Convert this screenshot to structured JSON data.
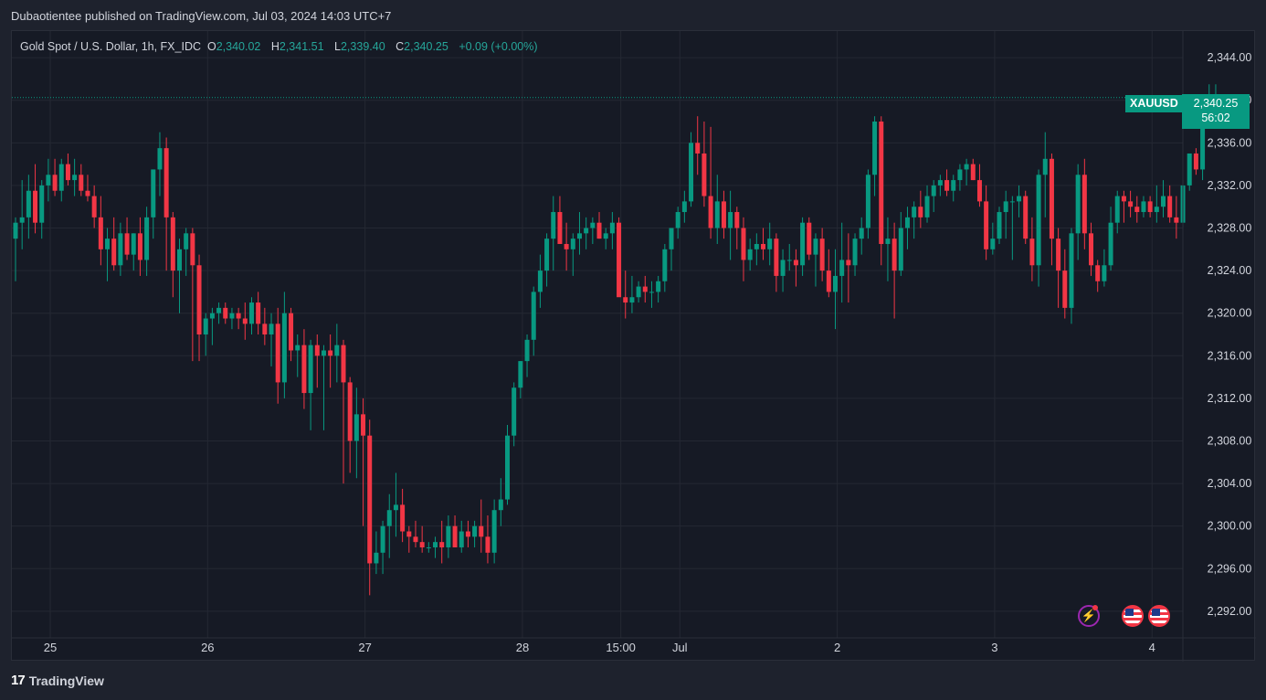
{
  "publisher": "Dubaotientee published on TradingView.com, Jul 03, 2024 14:03 UTC+7",
  "legend": {
    "title": "Gold Spot / U.S. Dollar, 1h, FX_IDC",
    "o_label": "O",
    "o": "2,340.02",
    "h_label": "H",
    "h": "2,341.51",
    "l_label": "L",
    "l": "2,339.40",
    "c_label": "C",
    "c": "2,340.25",
    "change": "+0.09 (+0.00%)"
  },
  "price_tag": {
    "symbol": "XAUUSD",
    "price": "2,340.25",
    "countdown": "56:02"
  },
  "brand": "TradingView",
  "colors": {
    "up": "#089981",
    "down": "#f23645",
    "background": "#161a25",
    "grid": "#242833"
  },
  "icons": [
    "flash-icon",
    "us-flag-icon",
    "us-flag-icon"
  ],
  "chart_data": {
    "type": "candlestick",
    "title": "Gold Spot / U.S. Dollar, 1h, FX_IDC",
    "ylim": [
      2289.5,
      2346.5
    ],
    "y_ticks": [
      2344,
      2340,
      2336,
      2332,
      2328,
      2324,
      2320,
      2316,
      2312,
      2308,
      2304,
      2300,
      2296,
      2292
    ],
    "y_tick_labels": [
      "2,344.00",
      "2,340.00",
      "2,336.00",
      "2,332.00",
      "2,328.00",
      "2,324.00",
      "2,320.00",
      "2,316.00",
      "2,312.00",
      "2,308.00",
      "2,304.00",
      "2,300.00",
      "2,296.00",
      "2,292.00"
    ],
    "x_ticks": [
      {
        "label": "25",
        "bar": 0
      },
      {
        "label": "26",
        "bar": 24
      },
      {
        "label": "27",
        "bar": 48
      },
      {
        "label": "28",
        "bar": 72
      },
      {
        "label": "15:00",
        "bar": 87
      },
      {
        "label": "Jul",
        "bar": 96
      },
      {
        "label": "2",
        "bar": 120
      },
      {
        "label": "3",
        "bar": 144
      },
      {
        "label": "4",
        "bar": 168
      }
    ],
    "last_price": 2340.25,
    "candles": [
      [
        2327.0,
        2329.0,
        2323.0,
        2328.5
      ],
      [
        2328.5,
        2332.5,
        2326.0,
        2329.0
      ],
      [
        2329.0,
        2333.0,
        2327.0,
        2331.5
      ],
      [
        2331.5,
        2334.0,
        2327.5,
        2328.5
      ],
      [
        2328.5,
        2332.5,
        2327.0,
        2332.0
      ],
      [
        2332.0,
        2334.5,
        2330.5,
        2333.0
      ],
      [
        2333.0,
        2334.5,
        2331.0,
        2331.5
      ],
      [
        2331.5,
        2334.5,
        2330.5,
        2334.0
      ],
      [
        2334.0,
        2335.0,
        2332.0,
        2332.5
      ],
      [
        2332.5,
        2334.5,
        2331.0,
        2333.0
      ],
      [
        2333.0,
        2334.0,
        2331.0,
        2331.5
      ],
      [
        2331.5,
        2333.0,
        2330.5,
        2331.0
      ],
      [
        2331.0,
        2332.0,
        2328.0,
        2329.0
      ],
      [
        2329.0,
        2331.0,
        2324.5,
        2326.0
      ],
      [
        2326.0,
        2328.0,
        2323.0,
        2327.0
      ],
      [
        2327.0,
        2329.0,
        2324.0,
        2324.5
      ],
      [
        2324.5,
        2328.5,
        2323.5,
        2327.5
      ],
      [
        2327.5,
        2329.0,
        2325.0,
        2325.5
      ],
      [
        2325.5,
        2327.5,
        2324.0,
        2327.5
      ],
      [
        2327.5,
        2329.0,
        2323.5,
        2325.0
      ],
      [
        2325.0,
        2330.0,
        2323.5,
        2329.0
      ],
      [
        2329.0,
        2333.5,
        2327.0,
        2333.5
      ],
      [
        2333.5,
        2337.0,
        2331.0,
        2335.5
      ],
      [
        2335.5,
        2336.5,
        2324.0,
        2329.0
      ],
      [
        2329.0,
        2329.5,
        2321.5,
        2324.0
      ],
      [
        2324.0,
        2327.0,
        2320.0,
        2326.0
      ],
      [
        2326.0,
        2328.0,
        2323.5,
        2327.5
      ],
      [
        2327.5,
        2328.0,
        2315.5,
        2324.5
      ],
      [
        2324.5,
        2325.5,
        2315.5,
        2318.0
      ],
      [
        2318.0,
        2320.0,
        2316.0,
        2319.5
      ],
      [
        2319.5,
        2320.5,
        2317.0,
        2320.0
      ],
      [
        2320.0,
        2321.0,
        2319.0,
        2320.5
      ],
      [
        2320.5,
        2321.0,
        2319.0,
        2319.5
      ],
      [
        2319.5,
        2320.5,
        2318.5,
        2320.0
      ],
      [
        2320.0,
        2320.5,
        2318.5,
        2319.5
      ],
      [
        2319.5,
        2321.0,
        2317.5,
        2319.0
      ],
      [
        2319.0,
        2321.5,
        2318.0,
        2321.0
      ],
      [
        2321.0,
        2322.0,
        2318.0,
        2319.0
      ],
      [
        2319.0,
        2320.5,
        2317.0,
        2318.0
      ],
      [
        2318.0,
        2320.0,
        2315.0,
        2319.0
      ],
      [
        2319.0,
        2320.5,
        2311.5,
        2313.5
      ],
      [
        2313.5,
        2322.0,
        2312.0,
        2320.0
      ],
      [
        2320.0,
        2320.5,
        2315.5,
        2316.5
      ],
      [
        2316.5,
        2318.0,
        2314.0,
        2317.0
      ],
      [
        2317.0,
        2318.5,
        2311.0,
        2312.5
      ],
      [
        2312.5,
        2317.5,
        2309.0,
        2317.0
      ],
      [
        2317.0,
        2318.0,
        2313.0,
        2316.0
      ],
      [
        2316.0,
        2317.0,
        2309.0,
        2316.5
      ],
      [
        2316.5,
        2318.0,
        2313.0,
        2316.0
      ],
      [
        2316.0,
        2319.0,
        2313.5,
        2317.0
      ],
      [
        2317.0,
        2317.5,
        2304.0,
        2313.5
      ],
      [
        2313.5,
        2314.0,
        2305.0,
        2308.0
      ],
      [
        2308.0,
        2313.0,
        2304.5,
        2310.5
      ],
      [
        2310.5,
        2312.0,
        2300.0,
        2308.5
      ],
      [
        2308.5,
        2310.0,
        2293.5,
        2296.5
      ],
      [
        2296.5,
        2299.5,
        2295.5,
        2297.5
      ],
      [
        2297.5,
        2300.5,
        2295.5,
        2300.0
      ],
      [
        2300.0,
        2303.0,
        2297.0,
        2301.5
      ],
      [
        2301.5,
        2305.0,
        2299.0,
        2302.0
      ],
      [
        2302.0,
        2303.5,
        2298.5,
        2299.5
      ],
      [
        2299.5,
        2300.0,
        2297.5,
        2299.0
      ],
      [
        2299.0,
        2300.5,
        2298.0,
        2298.5
      ],
      [
        2298.5,
        2300.0,
        2297.5,
        2298.0
      ],
      [
        2298.0,
        2298.5,
        2297.5,
        2298.0
      ],
      [
        2298.0,
        2299.0,
        2297.0,
        2298.5
      ],
      [
        2298.5,
        2300.5,
        2296.5,
        2298.0
      ],
      [
        2298.0,
        2301.0,
        2297.0,
        2300.0
      ],
      [
        2300.0,
        2301.0,
        2298.0,
        2298.0
      ],
      [
        2298.0,
        2300.5,
        2297.5,
        2299.5
      ],
      [
        2299.5,
        2300.5,
        2298.0,
        2299.0
      ],
      [
        2299.0,
        2300.5,
        2298.0,
        2300.0
      ],
      [
        2300.0,
        2302.5,
        2297.5,
        2299.0
      ],
      [
        2299.0,
        2301.0,
        2296.5,
        2297.5
      ],
      [
        2297.5,
        2302.5,
        2296.5,
        2301.5
      ],
      [
        2301.5,
        2304.5,
        2300.0,
        2302.5
      ],
      [
        2302.5,
        2309.5,
        2302.0,
        2308.5
      ],
      [
        2308.5,
        2313.5,
        2307.5,
        2313.0
      ],
      [
        2313.0,
        2315.5,
        2312.0,
        2315.5
      ],
      [
        2315.5,
        2318.0,
        2314.0,
        2317.5
      ],
      [
        2317.5,
        2322.5,
        2316.0,
        2322.0
      ],
      [
        2322.0,
        2325.5,
        2320.5,
        2324.0
      ],
      [
        2324.0,
        2327.5,
        2322.5,
        2327.0
      ],
      [
        2327.0,
        2331.0,
        2324.0,
        2329.5
      ],
      [
        2329.5,
        2331.0,
        2326.5,
        2326.5
      ],
      [
        2326.5,
        2328.5,
        2324.0,
        2326.0
      ],
      [
        2326.0,
        2327.5,
        2323.5,
        2327.0
      ],
      [
        2327.0,
        2329.5,
        2325.5,
        2327.5
      ],
      [
        2327.5,
        2329.0,
        2326.0,
        2328.0
      ],
      [
        2328.0,
        2329.0,
        2326.5,
        2328.5
      ],
      [
        2328.5,
        2329.5,
        2327.0,
        2327.0
      ],
      [
        2327.0,
        2328.0,
        2326.0,
        2327.5
      ],
      [
        2327.5,
        2329.5,
        2326.0,
        2328.5
      ],
      [
        2328.5,
        2329.0,
        2322.0,
        2321.5
      ],
      [
        2321.5,
        2324.0,
        2319.5,
        2321.0
      ],
      [
        2321.0,
        2323.5,
        2320.0,
        2321.5
      ],
      [
        2321.5,
        2323.0,
        2321.0,
        2322.5
      ],
      [
        2322.5,
        2323.5,
        2321.0,
        2322.0
      ],
      [
        2322.0,
        2323.0,
        2320.5,
        2322.0
      ],
      [
        2322.0,
        2323.5,
        2321.0,
        2323.0
      ],
      [
        2323.0,
        2326.5,
        2322.0,
        2326.0
      ],
      [
        2326.0,
        2328.0,
        2324.0,
        2328.0
      ],
      [
        2328.0,
        2330.0,
        2327.0,
        2329.5
      ],
      [
        2329.5,
        2331.5,
        2328.5,
        2330.5
      ],
      [
        2330.5,
        2337.0,
        2330.0,
        2336.0
      ],
      [
        2336.0,
        2338.5,
        2333.0,
        2335.0
      ],
      [
        2335.0,
        2338.0,
        2330.0,
        2331.0
      ],
      [
        2331.0,
        2337.5,
        2327.0,
        2328.0
      ],
      [
        2328.0,
        2333.0,
        2326.5,
        2330.5
      ],
      [
        2330.5,
        2331.5,
        2327.0,
        2328.0
      ],
      [
        2328.0,
        2331.5,
        2325.0,
        2329.5
      ],
      [
        2329.5,
        2330.0,
        2326.0,
        2328.0
      ],
      [
        2328.0,
        2329.0,
        2323.0,
        2325.0
      ],
      [
        2325.0,
        2327.0,
        2324.0,
        2326.0
      ],
      [
        2326.0,
        2327.5,
        2324.5,
        2326.5
      ],
      [
        2326.5,
        2328.0,
        2325.0,
        2326.0
      ],
      [
        2326.0,
        2328.5,
        2324.5,
        2327.0
      ],
      [
        2327.0,
        2327.5,
        2322.0,
        2323.5
      ],
      [
        2323.5,
        2326.0,
        2322.0,
        2325.0
      ],
      [
        2325.0,
        2326.5,
        2324.0,
        2325.0
      ],
      [
        2325.0,
        2326.0,
        2322.5,
        2324.5
      ],
      [
        2324.5,
        2329.0,
        2323.5,
        2328.5
      ],
      [
        2328.5,
        2329.0,
        2325.0,
        2325.5
      ],
      [
        2325.5,
        2327.5,
        2322.5,
        2327.0
      ],
      [
        2327.0,
        2328.0,
        2323.0,
        2324.0
      ],
      [
        2324.0,
        2326.0,
        2321.5,
        2322.0
      ],
      [
        2322.0,
        2326.0,
        2318.5,
        2323.5
      ],
      [
        2323.5,
        2328.5,
        2321.0,
        2325.0
      ],
      [
        2325.0,
        2327.5,
        2321.0,
        2324.5
      ],
      [
        2324.5,
        2327.5,
        2323.5,
        2327.0
      ],
      [
        2327.0,
        2329.0,
        2325.5,
        2328.0
      ],
      [
        2328.0,
        2333.5,
        2327.0,
        2333.0
      ],
      [
        2333.0,
        2338.5,
        2331.0,
        2338.0
      ],
      [
        2338.0,
        2338.5,
        2324.5,
        2326.5
      ],
      [
        2326.5,
        2329.0,
        2323.0,
        2327.0
      ],
      [
        2327.0,
        2328.5,
        2319.5,
        2324.0
      ],
      [
        2324.0,
        2329.5,
        2323.5,
        2328.0
      ],
      [
        2328.0,
        2330.0,
        2326.0,
        2329.0
      ],
      [
        2329.0,
        2330.5,
        2327.0,
        2330.0
      ],
      [
        2330.0,
        2331.5,
        2328.0,
        2329.0
      ],
      [
        2329.0,
        2332.0,
        2328.5,
        2331.0
      ],
      [
        2331.0,
        2332.5,
        2329.5,
        2332.0
      ],
      [
        2332.0,
        2333.0,
        2331.0,
        2332.5
      ],
      [
        2332.5,
        2333.5,
        2331.0,
        2331.5
      ],
      [
        2331.5,
        2333.0,
        2330.5,
        2332.5
      ],
      [
        2332.5,
        2334.0,
        2331.5,
        2333.5
      ],
      [
        2333.5,
        2334.5,
        2332.0,
        2334.0
      ],
      [
        2334.0,
        2334.5,
        2332.5,
        2332.5
      ],
      [
        2332.5,
        2334.0,
        2330.0,
        2330.5
      ],
      [
        2330.5,
        2332.0,
        2325.0,
        2326.0
      ],
      [
        2326.0,
        2328.5,
        2325.5,
        2327.0
      ],
      [
        2327.0,
        2330.0,
        2326.5,
        2329.5
      ],
      [
        2329.5,
        2331.5,
        2327.0,
        2330.5
      ],
      [
        2330.5,
        2331.0,
        2325.0,
        2330.5
      ],
      [
        2330.5,
        2332.0,
        2329.0,
        2331.0
      ],
      [
        2331.0,
        2331.5,
        2326.5,
        2327.0
      ],
      [
        2327.0,
        2329.0,
        2323.0,
        2324.5
      ],
      [
        2324.5,
        2333.5,
        2322.5,
        2333.0
      ],
      [
        2333.0,
        2337.0,
        2329.0,
        2334.5
      ],
      [
        2334.5,
        2335.0,
        2324.5,
        2327.0
      ],
      [
        2327.0,
        2328.0,
        2320.5,
        2324.0
      ],
      [
        2324.0,
        2326.0,
        2319.5,
        2320.5
      ],
      [
        2320.5,
        2328.0,
        2319.0,
        2327.5
      ],
      [
        2327.5,
        2334.0,
        2325.0,
        2333.0
      ],
      [
        2333.0,
        2334.5,
        2326.0,
        2327.5
      ],
      [
        2327.5,
        2328.5,
        2323.5,
        2324.5
      ],
      [
        2324.5,
        2325.0,
        2322.0,
        2323.0
      ],
      [
        2323.0,
        2326.0,
        2322.5,
        2324.5
      ],
      [
        2324.5,
        2330.0,
        2324.0,
        2328.5
      ],
      [
        2328.5,
        2331.5,
        2327.5,
        2331.0
      ],
      [
        2331.0,
        2331.5,
        2328.5,
        2330.5
      ],
      [
        2330.5,
        2331.5,
        2329.0,
        2330.0
      ],
      [
        2330.0,
        2331.0,
        2328.5,
        2329.5
      ],
      [
        2329.5,
        2331.0,
        2329.0,
        2330.5
      ],
      [
        2330.5,
        2331.0,
        2329.0,
        2329.5
      ],
      [
        2329.5,
        2332.0,
        2328.5,
        2330.0
      ],
      [
        2330.0,
        2332.5,
        2329.0,
        2331.0
      ],
      [
        2331.0,
        2332.0,
        2328.5,
        2329.0
      ],
      [
        2329.0,
        2331.0,
        2327.0,
        2328.5
      ],
      [
        2328.5,
        2332.5,
        2328.0,
        2332.0
      ],
      [
        2332.0,
        2335.0,
        2331.5,
        2335.0
      ],
      [
        2335.0,
        2335.5,
        2333.0,
        2333.5
      ],
      [
        2333.5,
        2340.0,
        2332.5,
        2339.5
      ],
      [
        2339.5,
        2341.5,
        2338.5,
        2340.0
      ],
      [
        2340.0,
        2341.5,
        2339.4,
        2340.25
      ]
    ]
  }
}
